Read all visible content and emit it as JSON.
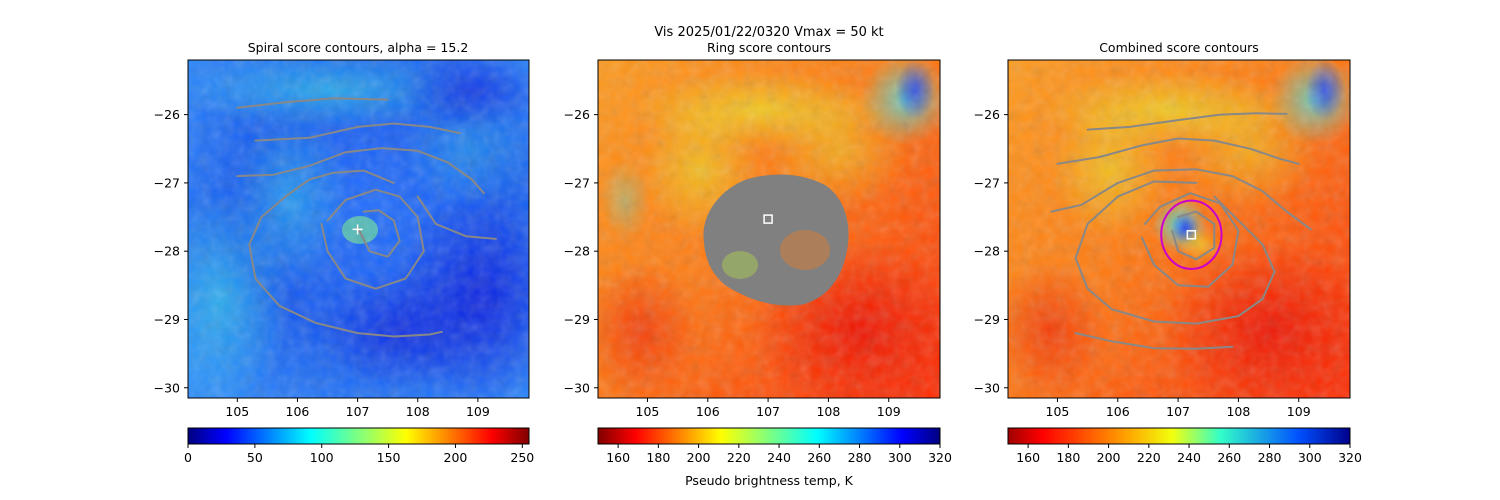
{
  "suptitle": "Vis  2025/01/22/0320    Vmax = 50 kt",
  "chart_data": [
    {
      "type": "heatmap",
      "title": "Spiral score contours, alpha = 15.2",
      "x_ticks": [
        "105",
        "106",
        "107",
        "108",
        "109"
      ],
      "x_tick_values": [
        105,
        106,
        107,
        108,
        109
      ],
      "y_ticks": [
        "−26",
        "−27",
        "−28",
        "−29",
        "−30"
      ],
      "y_tick_values": [
        -26,
        -27,
        -28,
        -29,
        -30
      ],
      "xlim": [
        104.18,
        109.85
      ],
      "ylim": [
        -30.15,
        -25.2
      ],
      "colormap": "jet",
      "colorbar": {
        "ticks": [
          "0",
          "50",
          "100",
          "150",
          "200",
          "250"
        ],
        "tick_values": [
          0,
          50,
          100,
          150,
          200,
          250
        ],
        "range": [
          0,
          255
        ],
        "reversed": false,
        "label": ""
      },
      "marker": {
        "type": "plus",
        "x": 107.0,
        "y": -27.68,
        "color": "#ffffff"
      },
      "contours": [
        [
          [
            105.0,
            -25.9
          ],
          [
            105.8,
            -25.82
          ],
          [
            106.6,
            -25.76
          ],
          [
            107.5,
            -25.78
          ]
        ],
        [
          [
            105.3,
            -26.38
          ],
          [
            106.2,
            -26.34
          ],
          [
            107.0,
            -26.18
          ],
          [
            107.6,
            -26.13
          ],
          [
            108.2,
            -26.18
          ],
          [
            108.7,
            -26.27
          ]
        ],
        [
          [
            105.0,
            -26.9
          ],
          [
            105.6,
            -26.88
          ],
          [
            106.2,
            -26.75
          ],
          [
            106.8,
            -26.55
          ],
          [
            107.4,
            -26.49
          ],
          [
            108.0,
            -26.53
          ],
          [
            108.5,
            -26.7
          ],
          [
            108.9,
            -26.95
          ],
          [
            109.1,
            -27.15
          ]
        ],
        [
          [
            107.6,
            -27.0
          ],
          [
            107.1,
            -26.82
          ],
          [
            106.6,
            -26.85
          ],
          [
            106.2,
            -26.95
          ],
          [
            105.8,
            -27.2
          ],
          [
            105.4,
            -27.5
          ],
          [
            105.2,
            -27.9
          ],
          [
            105.3,
            -28.4
          ],
          [
            105.7,
            -28.8
          ],
          [
            106.3,
            -29.05
          ],
          [
            107.0,
            -29.2
          ],
          [
            107.6,
            -29.25
          ],
          [
            108.2,
            -29.22
          ],
          [
            108.4,
            -29.18
          ]
        ],
        [
          [
            108.0,
            -27.2
          ],
          [
            108.3,
            -27.6
          ],
          [
            108.8,
            -27.78
          ],
          [
            109.3,
            -27.82
          ]
        ],
        [
          [
            106.4,
            -27.6
          ],
          [
            106.5,
            -28.0
          ],
          [
            106.8,
            -28.4
          ],
          [
            107.3,
            -28.55
          ],
          [
            107.8,
            -28.4
          ],
          [
            108.1,
            -28.0
          ],
          [
            108.0,
            -27.5
          ],
          [
            107.7,
            -27.2
          ],
          [
            107.3,
            -27.1
          ],
          [
            106.8,
            -27.25
          ],
          [
            106.5,
            -27.55
          ]
        ],
        [
          [
            107.0,
            -27.65
          ],
          [
            107.2,
            -28.0
          ],
          [
            107.5,
            -28.08
          ],
          [
            107.7,
            -27.85
          ],
          [
            107.6,
            -27.55
          ],
          [
            107.35,
            -27.4
          ],
          [
            107.1,
            -27.42
          ]
        ]
      ]
    },
    {
      "type": "heatmap",
      "title": "Ring score contours",
      "x_ticks": [
        "105",
        "106",
        "107",
        "108",
        "109"
      ],
      "x_tick_values": [
        105,
        106,
        107,
        108,
        109
      ],
      "y_ticks": [
        "−26",
        "−27",
        "−28",
        "−29",
        "−30"
      ],
      "y_tick_values": [
        -26,
        -27,
        -28,
        -29,
        -30
      ],
      "xlim": [
        104.18,
        109.85
      ],
      "ylim": [
        -30.15,
        -25.2
      ],
      "colormap": "jet_r",
      "colorbar": {
        "ticks": [
          "160",
          "180",
          "200",
          "220",
          "240",
          "260",
          "280",
          "300",
          "320"
        ],
        "tick_values": [
          160,
          180,
          200,
          220,
          240,
          260,
          280,
          300,
          320
        ],
        "range": [
          150,
          320
        ],
        "reversed": true,
        "label": "Pseudo brightness temp, K"
      },
      "marker": {
        "type": "square",
        "x": 107.0,
        "y": -27.53,
        "color": "#ffffff"
      },
      "blob_color": "#808080",
      "contours": []
    },
    {
      "type": "heatmap",
      "title": "Combined score contours",
      "x_ticks": [
        "105",
        "106",
        "107",
        "108",
        "109"
      ],
      "x_tick_values": [
        105,
        106,
        107,
        108,
        109
      ],
      "y_ticks": [
        "−26",
        "−27",
        "−28",
        "−29",
        "−30"
      ],
      "y_tick_values": [
        -26,
        -27,
        -28,
        -29,
        -30
      ],
      "xlim": [
        104.18,
        109.85
      ],
      "ylim": [
        -30.15,
        -25.2
      ],
      "colormap": "jet_r",
      "colorbar": {
        "ticks": [
          "160",
          "180",
          "200",
          "220",
          "240",
          "260",
          "280",
          "300",
          "320"
        ],
        "tick_values": [
          160,
          180,
          200,
          220,
          240,
          260,
          280,
          300,
          320
        ],
        "range": [
          150,
          320
        ],
        "reversed": true,
        "label": ""
      },
      "marker": {
        "type": "square",
        "x": 107.22,
        "y": -27.76,
        "color": "#ffffff"
      },
      "circle": {
        "x": 107.22,
        "y": -27.76,
        "r": 0.5,
        "color": "#cc00cc"
      },
      "contours": [
        [
          [
            105.5,
            -26.22
          ],
          [
            106.2,
            -26.18
          ],
          [
            107.0,
            -26.08
          ],
          [
            107.7,
            -26.0
          ],
          [
            108.3,
            -25.98
          ],
          [
            108.8,
            -25.99
          ]
        ],
        [
          [
            105.0,
            -26.72
          ],
          [
            105.7,
            -26.62
          ],
          [
            106.4,
            -26.45
          ],
          [
            107.0,
            -26.35
          ],
          [
            107.6,
            -26.38
          ],
          [
            108.2,
            -26.5
          ],
          [
            108.7,
            -26.65
          ],
          [
            109.0,
            -26.72
          ]
        ],
        [
          [
            104.9,
            -27.42
          ],
          [
            105.4,
            -27.32
          ],
          [
            106.0,
            -27.0
          ],
          [
            106.6,
            -26.82
          ],
          [
            107.3,
            -26.8
          ],
          [
            107.9,
            -26.9
          ],
          [
            108.4,
            -27.12
          ],
          [
            108.8,
            -27.42
          ],
          [
            109.2,
            -27.68
          ]
        ],
        [
          [
            107.3,
            -27.0
          ],
          [
            106.6,
            -26.98
          ],
          [
            106.0,
            -27.2
          ],
          [
            105.5,
            -27.6
          ],
          [
            105.3,
            -28.1
          ],
          [
            105.5,
            -28.55
          ],
          [
            105.9,
            -28.85
          ],
          [
            106.6,
            -29.03
          ],
          [
            107.3,
            -29.06
          ],
          [
            108.0,
            -28.95
          ],
          [
            108.4,
            -28.7
          ],
          [
            108.6,
            -28.3
          ],
          [
            108.4,
            -27.9
          ],
          [
            108.0,
            -27.55
          ],
          [
            107.6,
            -27.2
          ]
        ],
        [
          [
            106.4,
            -27.8
          ],
          [
            106.6,
            -28.2
          ],
          [
            107.0,
            -28.5
          ],
          [
            107.5,
            -28.52
          ],
          [
            107.9,
            -28.2
          ],
          [
            108.0,
            -27.7
          ],
          [
            107.7,
            -27.3
          ],
          [
            107.2,
            -27.15
          ],
          [
            106.7,
            -27.35
          ],
          [
            106.45,
            -27.6
          ]
        ],
        [
          [
            106.9,
            -27.7
          ],
          [
            107.0,
            -28.0
          ],
          [
            107.3,
            -28.12
          ],
          [
            107.6,
            -27.95
          ],
          [
            107.6,
            -27.6
          ],
          [
            107.3,
            -27.42
          ],
          [
            107.0,
            -27.5
          ]
        ],
        [
          [
            105.3,
            -29.2
          ],
          [
            105.9,
            -29.32
          ],
          [
            106.6,
            -29.42
          ],
          [
            107.3,
            -29.43
          ],
          [
            107.9,
            -29.4
          ]
        ]
      ]
    }
  ]
}
